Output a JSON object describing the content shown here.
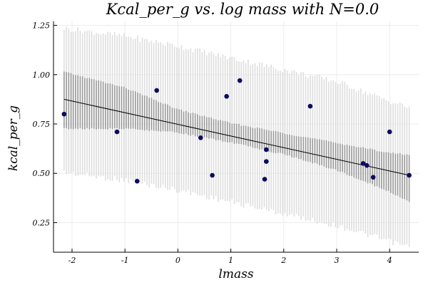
{
  "chart_data": {
    "type": "scatter",
    "title": "Kcal_per_g vs. log mass with N=0.0",
    "xlabel": "lmass",
    "ylabel": "kcal_per_g",
    "xlim": [
      -2.35,
      4.55
    ],
    "ylim": [
      0.1,
      1.27
    ],
    "xticks": [
      -2,
      -1,
      0,
      1,
      2,
      3,
      4
    ],
    "yticks": [
      0.25,
      0.5,
      0.75,
      1.0,
      1.25
    ],
    "xtick_labels": [
      "-2",
      "-1",
      "0",
      "1",
      "2",
      "3",
      "4"
    ],
    "ytick_labels": [
      "0.25",
      "0.50",
      "0.75",
      "1.00",
      "1.25"
    ],
    "grid": true,
    "legend": "none",
    "colors": {
      "points": "#0b0b5e",
      "line": "#000000",
      "inner_band": "#9a9a9a",
      "outer_band": "#dedede",
      "grid": "#ececec",
      "axis": "#000000"
    },
    "points": {
      "x": [
        -2.15,
        -1.15,
        -0.77,
        -0.4,
        0.43,
        0.65,
        0.92,
        1.17,
        1.64,
        1.67,
        1.67,
        2.5,
        3.5,
        3.57,
        3.69,
        4.0,
        4.37
      ],
      "y": [
        0.8,
        0.71,
        0.46,
        0.92,
        0.68,
        0.49,
        0.89,
        0.97,
        0.47,
        0.62,
        0.56,
        0.84,
        0.55,
        0.54,
        0.48,
        0.71,
        0.49
      ]
    },
    "regression_line": {
      "x": [
        -2.15,
        4.37
      ],
      "y": [
        0.875,
        0.49
      ]
    },
    "mean_interval": {
      "x": [
        -2.15,
        -1,
        0,
        1,
        2,
        3,
        4,
        4.37
      ],
      "lower": [
        0.73,
        0.73,
        0.71,
        0.66,
        0.6,
        0.52,
        0.41,
        0.36
      ],
      "upper": [
        1.01,
        0.93,
        0.82,
        0.75,
        0.7,
        0.65,
        0.6,
        0.59
      ]
    },
    "prediction_interval": {
      "x": [
        -2.15,
        -1,
        0,
        1,
        2,
        3,
        4,
        4.37
      ],
      "lower": [
        0.52,
        0.48,
        0.43,
        0.37,
        0.31,
        0.25,
        0.17,
        0.14
      ],
      "upper": [
        1.22,
        1.18,
        1.13,
        1.07,
        1.01,
        0.95,
        0.85,
        0.82
      ]
    }
  }
}
